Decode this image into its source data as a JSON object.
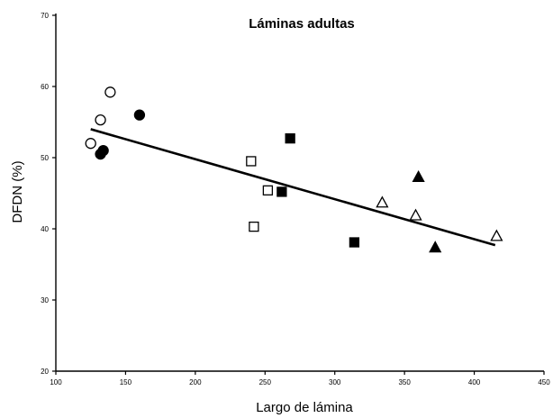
{
  "chart_data": {
    "type": "scatter",
    "title": "Láminas adultas",
    "xlabel": "Largo de lámina",
    "ylabel": "DFDN (%)",
    "xlim": [
      100,
      450
    ],
    "ylim": [
      20,
      70
    ],
    "xticks": [
      "100",
      "150",
      "200",
      "250",
      "300",
      "350",
      "400",
      "450"
    ],
    "yticks": [
      "20",
      "30",
      "40",
      "50",
      "60",
      "70"
    ],
    "grid": false,
    "series": [
      {
        "marker": "open-circle",
        "points": [
          [
            125,
            52
          ],
          [
            132,
            55.3
          ],
          [
            139,
            59.2
          ]
        ]
      },
      {
        "marker": "filled-circle",
        "points": [
          [
            132,
            50.5
          ],
          [
            134,
            51
          ],
          [
            160,
            56
          ]
        ]
      },
      {
        "marker": "open-square",
        "points": [
          [
            240,
            49.5
          ],
          [
            242,
            40.3
          ],
          [
            252,
            45.4
          ]
        ]
      },
      {
        "marker": "filled-square",
        "points": [
          [
            262,
            45.2
          ],
          [
            268,
            52.7
          ],
          [
            314,
            38.1
          ]
        ]
      },
      {
        "marker": "open-triangle",
        "points": [
          [
            334,
            43.7
          ],
          [
            358,
            41.9
          ],
          [
            416,
            39
          ]
        ]
      },
      {
        "marker": "filled-triangle",
        "points": [
          [
            360,
            47.3
          ],
          [
            372,
            37.4
          ]
        ]
      }
    ],
    "trendline": {
      "x": [
        125,
        415
      ],
      "y": [
        54,
        37.7
      ]
    }
  }
}
